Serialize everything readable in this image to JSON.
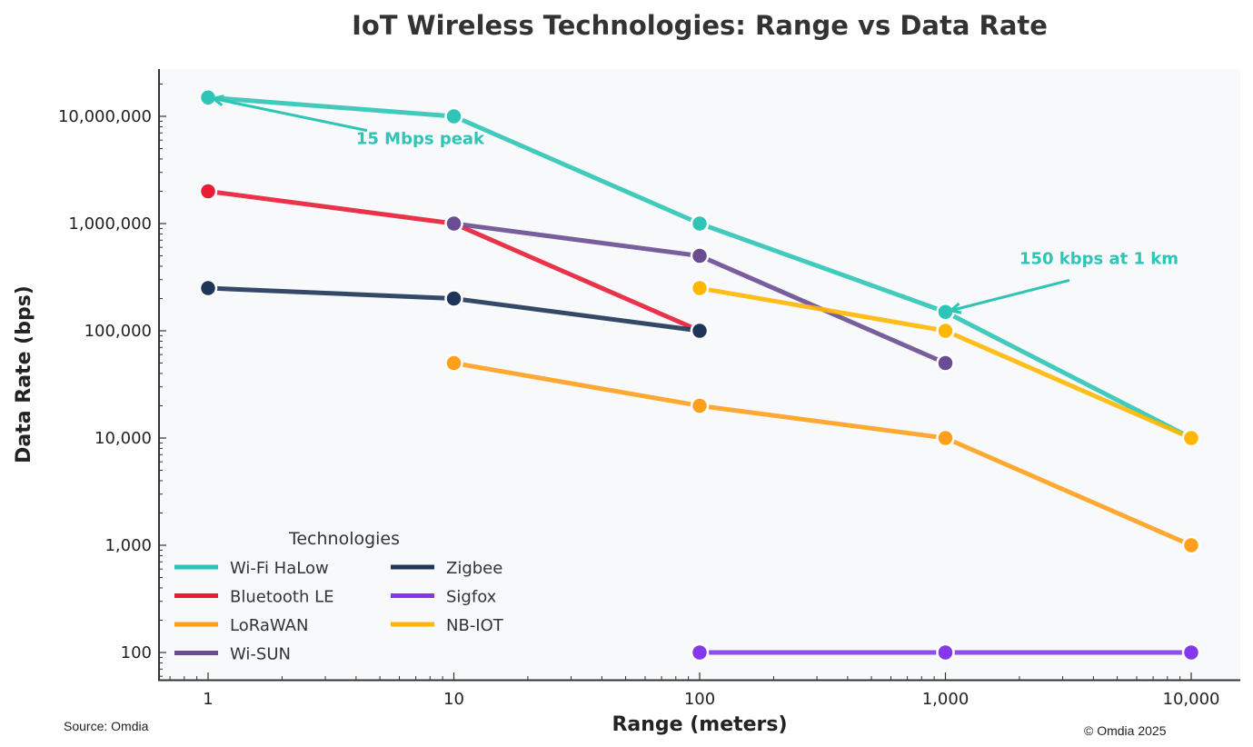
{
  "chart_data": {
    "type": "line",
    "title": "IoT Wireless Technologies: Range vs Data Rate",
    "xlabel": "Range (meters)",
    "ylabel": "Data Rate (bps)",
    "xscale": "log",
    "yscale": "log",
    "xlim": [
      0.63,
      16000
    ],
    "ylim": [
      55,
      28000000
    ],
    "x_ticks": [
      1,
      10,
      100,
      1000,
      10000
    ],
    "x_tick_labels": [
      "1",
      "10",
      "100",
      "1,000",
      "10,000"
    ],
    "y_ticks": [
      100,
      1000,
      10000,
      100000,
      1000000,
      10000000
    ],
    "y_tick_labels": [
      "100",
      "1,000",
      "10,000",
      "100,000",
      "1,000,000",
      "10,000,000"
    ],
    "grid": false,
    "legend": {
      "title": "Technologies",
      "placement": "bottom-left",
      "columns": 2
    },
    "series": [
      {
        "name": "Wi-Fi HaLow",
        "color": "#2ec4b6",
        "x": [
          1,
          10,
          100,
          1000,
          10000
        ],
        "y": [
          15000000,
          10000000,
          1000000,
          150000,
          10000
        ]
      },
      {
        "name": "Bluetooth LE",
        "color": "#e71d36",
        "x": [
          1,
          10,
          100
        ],
        "y": [
          2000000,
          1000000,
          100000
        ]
      },
      {
        "name": "LoRaWAN",
        "color": "#ff9f1c",
        "x": [
          10,
          100,
          1000,
          10000
        ],
        "y": [
          50000,
          20000,
          10000,
          1000
        ]
      },
      {
        "name": "Wi-SUN",
        "color": "#6a4c93",
        "x": [
          10,
          100,
          1000
        ],
        "y": [
          1000000,
          500000,
          50000
        ]
      },
      {
        "name": "Zigbee",
        "color": "#1d3557",
        "x": [
          1,
          10,
          100
        ],
        "y": [
          250000,
          200000,
          100000
        ]
      },
      {
        "name": "Sigfox",
        "color": "#8338ec",
        "x": [
          100,
          1000,
          10000
        ],
        "y": [
          100,
          100,
          100
        ]
      },
      {
        "name": "NB-IOT",
        "color": "#ffb703",
        "x": [
          100,
          1000,
          10000
        ],
        "y": [
          250000,
          100000,
          10000
        ]
      }
    ],
    "annotations": [
      {
        "text": "15 Mbps peak",
        "color": "#2ec4b6",
        "point": [
          1,
          15000000
        ],
        "text_at": [
          4,
          5500000
        ]
      },
      {
        "text": "150 kbps at 1 km",
        "color": "#2ec4b6",
        "point": [
          1000,
          150000
        ],
        "text_at": [
          2000,
          420000
        ]
      }
    ]
  },
  "footer": {
    "source": "Source: Omdia",
    "copyright": "© Omdia 2025"
  }
}
